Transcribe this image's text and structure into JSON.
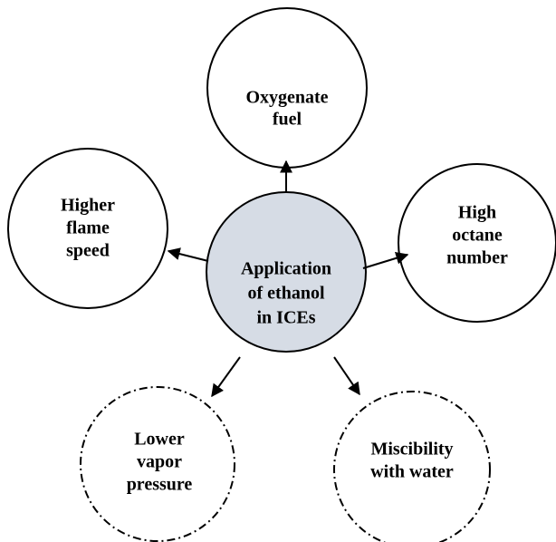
{
  "center": {
    "lines": [
      "Application",
      "of ethanol",
      "in ICEs"
    ]
  },
  "nodes": [
    {
      "lines": [
        "Oxygenate",
        "fuel"
      ]
    },
    {
      "lines": [
        "Higher",
        "flame",
        "speed"
      ]
    },
    {
      "lines": [
        "High",
        "octane",
        "number"
      ]
    },
    {
      "lines": [
        "Lower",
        "vapor",
        "pressure"
      ]
    },
    {
      "lines": [
        "Miscibility",
        "with water"
      ]
    }
  ]
}
